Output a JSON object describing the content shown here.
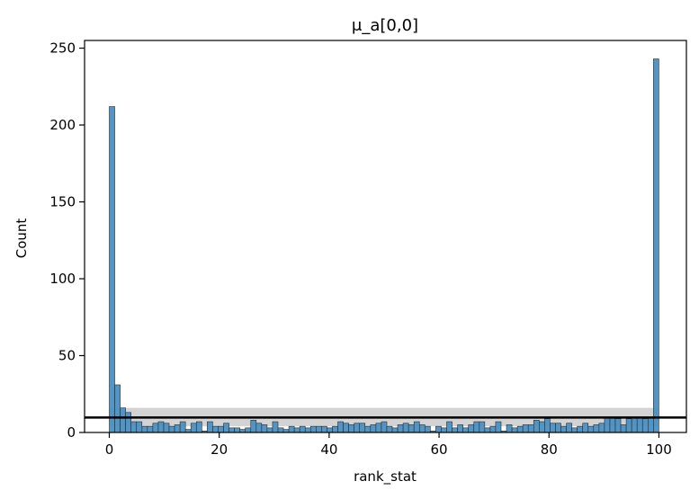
{
  "chart_data": {
    "type": "bar",
    "title": "μ_a[0,0]",
    "xlabel": "rank_stat",
    "ylabel": "Count",
    "xlim": [
      -4.5,
      105
    ],
    "ylim": [
      0,
      255
    ],
    "xticks": [
      0,
      20,
      40,
      60,
      80,
      100
    ],
    "yticks": [
      0,
      50,
      100,
      150,
      200,
      250
    ],
    "grid": false,
    "bar_color": "#4a90c2",
    "bar_edge_color": "#2b2b2b",
    "band_color": "#d3d3d3",
    "reference_line_color": "#000000",
    "uniform_expected_count": 9.7,
    "uniform_band": [
      4,
      16
    ],
    "bin_width": 0.99,
    "bin_starts": [
      0,
      0.99,
      1.98,
      2.97,
      3.96,
      4.95,
      5.94,
      6.93,
      7.92,
      8.91,
      9.9,
      10.89,
      11.88,
      12.87,
      13.86,
      14.85,
      15.84,
      16.83,
      17.82,
      18.81,
      19.8,
      20.79,
      21.78,
      22.77,
      23.76,
      24.75,
      25.74,
      26.73,
      27.72,
      28.71,
      29.7,
      30.69,
      31.68,
      32.67,
      33.66,
      34.65,
      35.64,
      36.63,
      37.62,
      38.61,
      39.6,
      40.59,
      41.58,
      42.57,
      43.56,
      44.55,
      45.54,
      46.53,
      47.52,
      48.51,
      49.5,
      50.49,
      51.48,
      52.47,
      53.46,
      54.45,
      55.44,
      56.43,
      57.42,
      58.41,
      59.4,
      60.39,
      61.38,
      62.37,
      63.36,
      64.35,
      65.34,
      66.33,
      67.32,
      68.31,
      69.3,
      70.29,
      71.28,
      72.27,
      73.26,
      74.25,
      75.24,
      76.23,
      77.22,
      78.21,
      79.2,
      80.19,
      81.18,
      82.17,
      83.16,
      84.15,
      85.14,
      86.13,
      87.12,
      88.11,
      89.1,
      90.09,
      91.08,
      92.07,
      93.06,
      94.05,
      95.04,
      96.03,
      97.02,
      98.01,
      99
    ],
    "values": [
      212,
      31,
      16,
      13,
      7,
      7,
      4,
      4,
      6,
      7,
      6,
      4,
      5,
      7,
      2,
      6,
      7,
      1,
      7,
      4,
      4,
      6,
      3,
      3,
      2,
      3,
      8,
      6,
      5,
      3,
      7,
      3,
      2,
      4,
      3,
      4,
      3,
      4,
      4,
      4,
      3,
      4,
      7,
      6,
      5,
      6,
      6,
      4,
      5,
      6,
      7,
      4,
      3,
      5,
      6,
      5,
      7,
      5,
      4,
      1,
      4,
      3,
      7,
      3,
      5,
      3,
      5,
      7,
      7,
      3,
      4,
      7,
      1,
      5,
      3,
      4,
      5,
      5,
      8,
      7,
      9,
      6,
      6,
      4,
      6,
      3,
      4,
      6,
      4,
      5,
      6,
      10,
      10,
      9,
      5,
      9,
      10,
      10,
      9,
      10,
      243
    ]
  }
}
